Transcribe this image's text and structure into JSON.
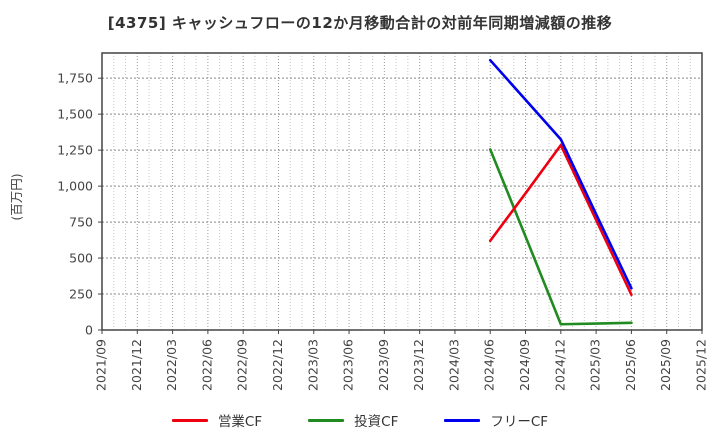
{
  "title": "[4375]  キャッシュフローの12か月移動合計の対前年同期増減額の推移",
  "chart_data": {
    "type": "line",
    "title": "[4375]  キャッシュフローの12か月移動合計の対前年同期増減額の推移",
    "ylabel": "(百万円)",
    "xlabel": "",
    "categories": [
      "2021/09",
      "2021/12",
      "2022/03",
      "2022/06",
      "2022/09",
      "2022/12",
      "2023/03",
      "2023/06",
      "2023/09",
      "2023/12",
      "2024/03",
      "2024/06",
      "2024/09",
      "2024/12",
      "2025/03",
      "2025/06",
      "2025/09",
      "2025/12"
    ],
    "x": [
      "2024/06",
      "2024/09",
      "2024/12",
      "2025/03",
      "2025/06"
    ],
    "series": [
      {
        "name": "営業CF",
        "color": "#ee0011",
        "values": [
          620,
          950,
          1285,
          765,
          245
        ]
      },
      {
        "name": "投資CF",
        "color": "#208b20",
        "values": [
          1255,
          650,
          40,
          45,
          50
        ]
      },
      {
        "name": "フリーCF",
        "color": "#0000ee",
        "values": [
          1875,
          1600,
          1325,
          805,
          290
        ]
      }
    ],
    "ylim": [
      0,
      1925
    ],
    "yticks": [
      0,
      250,
      500,
      750,
      1000,
      1250,
      1500,
      1750
    ],
    "grid": true,
    "grid_style": "dotted",
    "minor_x_grid_per_interval": 3,
    "legend_position": "bottom",
    "axis_color": "#444444",
    "tick_label_color": "#444444"
  }
}
